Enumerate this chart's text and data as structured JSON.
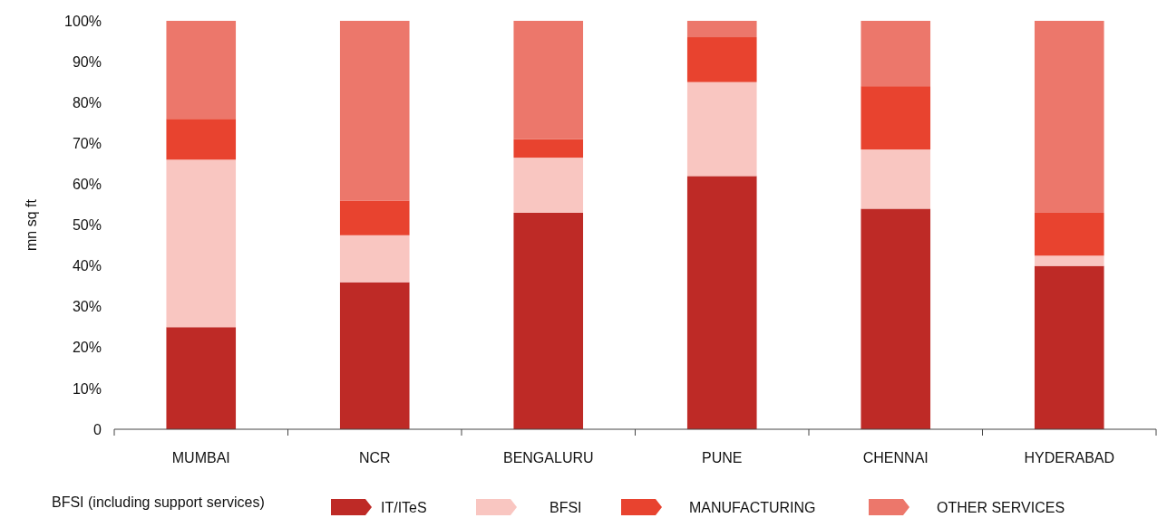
{
  "chart_data": {
    "type": "bar",
    "stacked": true,
    "ylabel": "mn sq ft",
    "categories": [
      "MUMBAI",
      "NCR",
      "BENGALURU",
      "PUNE",
      "CHENNAI",
      "HYDERABAD"
    ],
    "series": [
      {
        "name": "IT/ITeS",
        "color": "#be2a26",
        "values": [
          25,
          36,
          53,
          62,
          54,
          40
        ]
      },
      {
        "name": "BFSI",
        "color": "#f9c6c1",
        "values": [
          41,
          11.5,
          13.5,
          23,
          14.5,
          2.5
        ]
      },
      {
        "name": "MANUFACTURING",
        "color": "#e8432f",
        "values": [
          10,
          8.5,
          4.5,
          11,
          15.5,
          10.5
        ]
      },
      {
        "name": "OTHER SERVICES",
        "color": "#ec776b",
        "values": [
          24,
          44,
          29,
          4,
          16,
          47
        ]
      }
    ],
    "ylim": [
      0,
      100
    ],
    "yticks": [
      0,
      {
        "value": 10,
        "label": "10%"
      },
      {
        "value": 20,
        "label": "20%"
      },
      {
        "value": 30,
        "label": "30%"
      },
      {
        "value": 40,
        "label": "40%"
      },
      {
        "value": 50,
        "label": "50%"
      },
      {
        "value": 60,
        "label": "60%"
      },
      {
        "value": 70,
        "label": "70%"
      },
      {
        "value": 80,
        "label": "80%"
      },
      {
        "value": 90,
        "label": "90%"
      },
      {
        "value": 100,
        "label": "100%"
      }
    ],
    "legend": "bottom",
    "annotations": [
      "BFSI (including support services)"
    ]
  }
}
